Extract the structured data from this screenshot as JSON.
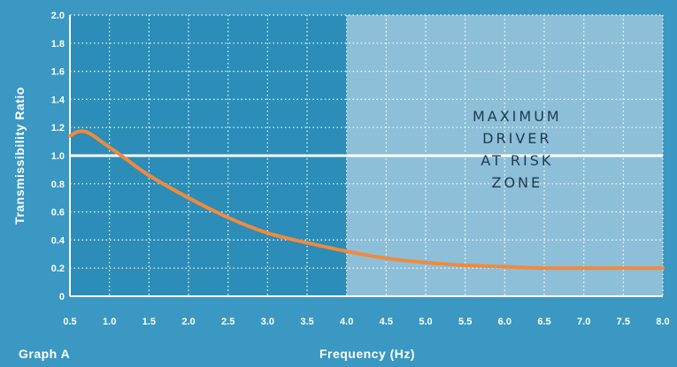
{
  "colors": {
    "background": "#3a98c2",
    "plot_area": "#2b8db8",
    "risk_zone": "#8dbfd9",
    "curve": "#f08a3c",
    "reference_line": "#ffffff",
    "grid": "#ffffff",
    "zone_text": "#1f3a4d"
  },
  "chart_data": {
    "type": "line",
    "graph_label": "Graph A",
    "xlabel": "Frequency (Hz)",
    "ylabel": "Transmissibility Ratio",
    "xlim": [
      0.5,
      8.0
    ],
    "ylim": [
      0,
      2.0
    ],
    "x_ticks": [
      "0.5",
      "1.0",
      "1.5",
      "2.0",
      "2.5",
      "3.0",
      "3.5",
      "4.0",
      "4.5",
      "5.0",
      "5.5",
      "6.0",
      "6.5",
      "7.0",
      "7.5",
      "8.0"
    ],
    "y_ticks": [
      "0",
      "0.2",
      "0.4",
      "0.6",
      "0.8",
      "1.0",
      "1.2",
      "1.4",
      "1.6",
      "1.8",
      "2.0"
    ],
    "grid": true,
    "reference_line": {
      "y": 1.0
    },
    "zone": {
      "x_start": 4.0,
      "x_end": 8.0,
      "label_lines": [
        "MAXIMUM",
        "DRIVER",
        "AT RISK",
        "ZONE"
      ]
    },
    "series": [
      {
        "x": [
          0.5,
          0.6,
          0.7,
          0.8,
          0.9,
          1.0,
          1.2,
          1.5,
          2.0,
          2.5,
          3.0,
          3.5,
          4.0,
          4.5,
          5.0,
          5.5,
          6.0,
          6.5,
          7.0,
          7.5,
          8.0
        ],
        "y": [
          1.14,
          1.17,
          1.17,
          1.14,
          1.1,
          1.06,
          0.98,
          0.86,
          0.7,
          0.56,
          0.45,
          0.38,
          0.32,
          0.27,
          0.24,
          0.22,
          0.21,
          0.2,
          0.2,
          0.2,
          0.2
        ]
      }
    ]
  }
}
